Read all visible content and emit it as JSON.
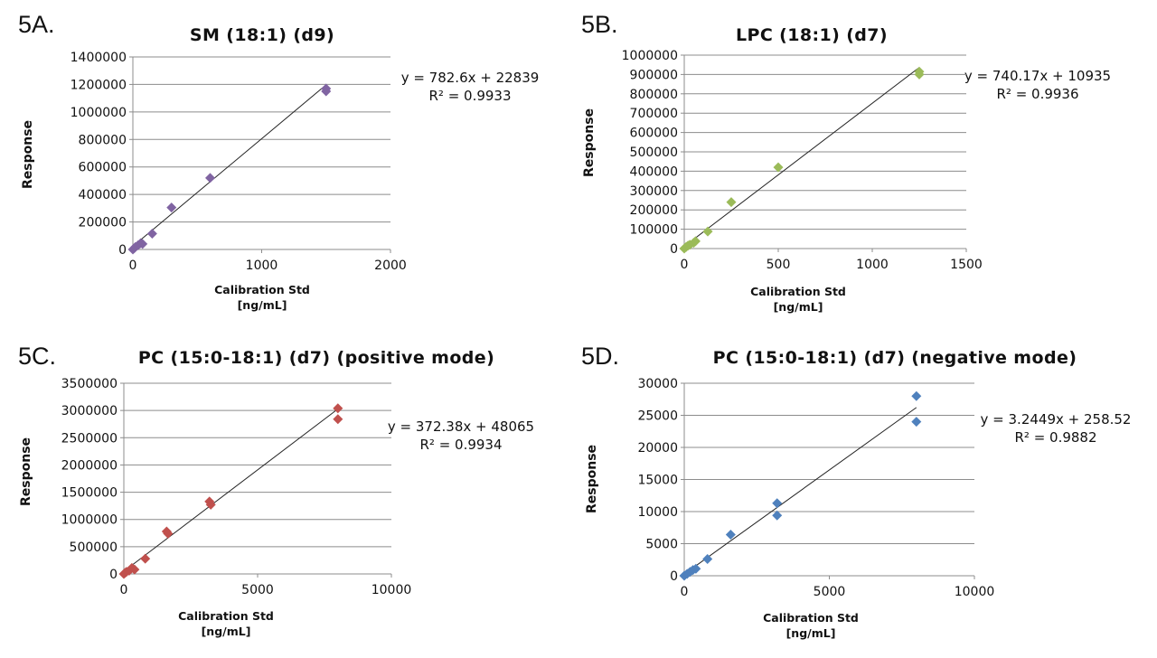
{
  "panels": [
    {
      "label": "5A.",
      "chart_data": {
        "type": "scatter",
        "title": "SM (18:1) (d9)",
        "xlabel_line1": "Calibration Std",
        "xlabel_line2": "[ng/mL]",
        "ylabel": "Response",
        "xlim": [
          0,
          2000
        ],
        "ylim": [
          0,
          1400000
        ],
        "x_ticks": [
          0,
          1000,
          2000
        ],
        "x_tick_labels": [
          "0",
          "1000",
          "2000"
        ],
        "y_ticks": [
          0,
          200000,
          400000,
          600000,
          800000,
          1000000,
          1200000,
          1400000
        ],
        "y_tick_labels": [
          "0",
          "200000",
          "400000",
          "600000",
          "800000",
          "1000000",
          "1200000",
          "1400000"
        ],
        "grid": "horizontal",
        "marker_color": "#8064a2",
        "points": [
          [
            0,
            0
          ],
          [
            10,
            8000
          ],
          [
            20,
            18000
          ],
          [
            40,
            30000
          ],
          [
            60,
            45000
          ],
          [
            75,
            40000
          ],
          [
            150,
            115000
          ],
          [
            300,
            305000
          ],
          [
            600,
            520000
          ],
          [
            1500,
            1170000
          ],
          [
            1500,
            1150000
          ]
        ],
        "trendline": {
          "slope": 782.6,
          "intercept": 22839,
          "x_range": [
            0,
            1500
          ]
        },
        "equation": "y = 782.6x  + 22839",
        "r_squared": "R² = 0.9933"
      }
    },
    {
      "label": "5B.",
      "chart_data": {
        "type": "scatter",
        "title": "LPC (18:1) (d7)",
        "xlabel_line1": "Calibration Std",
        "xlabel_line2": "[ng/mL]",
        "ylabel": "Response",
        "xlim": [
          0,
          1500
        ],
        "ylim": [
          0,
          1000000
        ],
        "x_ticks": [
          0,
          500,
          1000,
          1500
        ],
        "x_tick_labels": [
          "0",
          "500",
          "1000",
          "1500"
        ],
        "y_ticks": [
          0,
          100000,
          200000,
          300000,
          400000,
          500000,
          600000,
          700000,
          800000,
          900000,
          1000000
        ],
        "y_tick_labels": [
          "0",
          "100000",
          "200000",
          "300000",
          "400000",
          "500000",
          "600000",
          "700000",
          "800000",
          "900000",
          "1000000"
        ],
        "grid": "horizontal",
        "marker_color": "#9bbb59",
        "points": [
          [
            0,
            0
          ],
          [
            10,
            8000
          ],
          [
            20,
            15000
          ],
          [
            30,
            20000
          ],
          [
            50,
            30000
          ],
          [
            60,
            38000
          ],
          [
            125,
            88000
          ],
          [
            250,
            240000
          ],
          [
            500,
            420000
          ],
          [
            1250,
            915000
          ],
          [
            1250,
            900000
          ]
        ],
        "trendline": {
          "slope": 740.17,
          "intercept": 10935,
          "x_range": [
            0,
            1250
          ]
        },
        "equation": "y = 740.17x  + 10935",
        "r_squared": "R² = 0.9936"
      }
    },
    {
      "label": "5C.",
      "chart_data": {
        "type": "scatter",
        "title": "PC (15:0-18:1) (d7) (positive mode)",
        "xlabel_line1": "Calibration Std",
        "xlabel_line2": "[ng/mL]",
        "ylabel": "Response",
        "xlim": [
          0,
          10000
        ],
        "ylim": [
          0,
          3500000
        ],
        "x_ticks": [
          0,
          5000,
          10000
        ],
        "x_tick_labels": [
          "0",
          "5000",
          "10000"
        ],
        "y_ticks": [
          0,
          500000,
          1000000,
          1500000,
          2000000,
          2500000,
          3000000,
          3500000
        ],
        "y_tick_labels": [
          "0",
          "500000",
          "1000000",
          "1500000",
          "2000000",
          "2500000",
          "3000000",
          "3500000"
        ],
        "grid": "horizontal",
        "marker_color": "#c0504d",
        "points": [
          [
            0,
            0
          ],
          [
            50,
            20000
          ],
          [
            100,
            40000
          ],
          [
            200,
            60000
          ],
          [
            300,
            110000
          ],
          [
            400,
            80000
          ],
          [
            800,
            280000
          ],
          [
            1600,
            780000
          ],
          [
            1650,
            740000
          ],
          [
            3200,
            1330000
          ],
          [
            3250,
            1270000
          ],
          [
            8000,
            3040000
          ],
          [
            8000,
            2840000
          ]
        ],
        "trendline": {
          "slope": 372.38,
          "intercept": 48065,
          "x_range": [
            0,
            8000
          ]
        },
        "equation": "y = 372.38x  + 48065",
        "r_squared": "R² = 0.9934"
      }
    },
    {
      "label": "5D.",
      "chart_data": {
        "type": "scatter",
        "title": "PC (15:0-18:1) (d7) (negative mode)",
        "xlabel_line1": "Calibration Std",
        "xlabel_line2": "[ng/mL]",
        "ylabel": "Response",
        "xlim": [
          0,
          10000
        ],
        "ylim": [
          0,
          30000
        ],
        "x_ticks": [
          0,
          5000,
          10000
        ],
        "x_tick_labels": [
          "0",
          "5000",
          "10000"
        ],
        "y_ticks": [
          0,
          5000,
          10000,
          15000,
          20000,
          25000,
          30000
        ],
        "y_tick_labels": [
          "0",
          "5000",
          "10000",
          "15000",
          "20000",
          "25000",
          "30000"
        ],
        "grid": "horizontal",
        "marker_color": "#4f81bd",
        "points": [
          [
            0,
            0
          ],
          [
            100,
            300
          ],
          [
            200,
            600
          ],
          [
            300,
            900
          ],
          [
            400,
            1100
          ],
          [
            800,
            2600
          ],
          [
            1600,
            6400
          ],
          [
            3200,
            11300
          ],
          [
            3200,
            9400
          ],
          [
            8000,
            28000
          ],
          [
            8000,
            24000
          ]
        ],
        "trendline": {
          "slope": 3.2449,
          "intercept": 258.52,
          "x_range": [
            0,
            8000
          ]
        },
        "equation": "y = 3.2449x  + 258.52",
        "r_squared": "R² = 0.9882"
      }
    }
  ]
}
